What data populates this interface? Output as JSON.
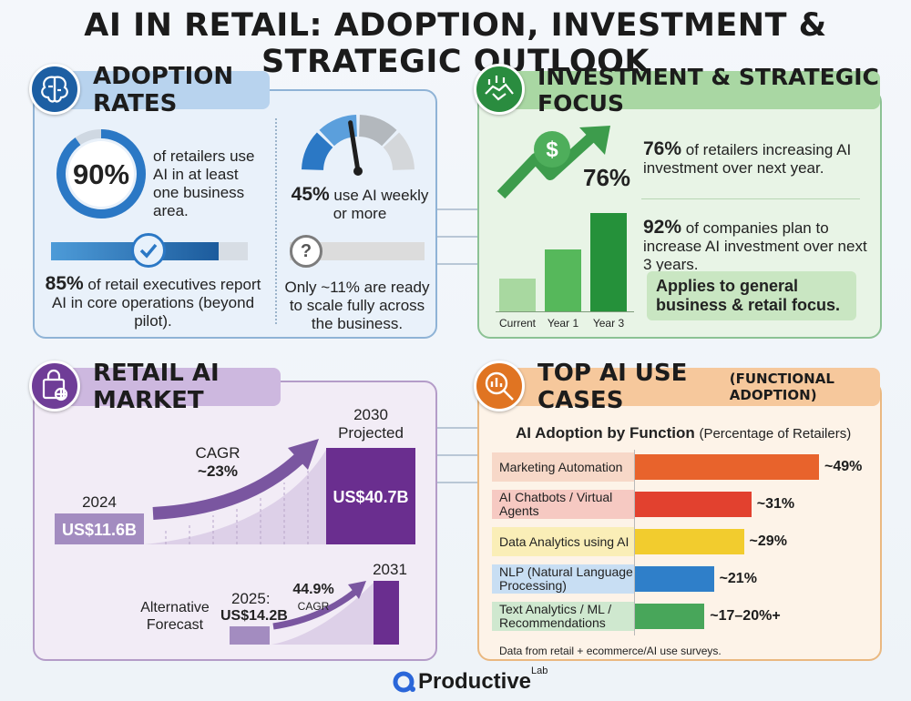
{
  "title": "AI IN RETAIL: ADOPTION, INVESTMENT & STRATEGIC OUTLOOK",
  "adoption": {
    "header": "ADOPTION RATES",
    "ring_value": "90%",
    "ring_fraction": 0.9,
    "ring_text": "of retailers use AI in at least one business area.",
    "gauge_fraction": 0.45,
    "weekly_value": "45%",
    "weekly_text": "use AI weekly or more",
    "core_fraction": 0.85,
    "core_value": "85%",
    "core_text": "of retail executives report AI in core operations (beyond pilot).",
    "scale_text": "Only ~11% are ready to scale fully across the business."
  },
  "investment": {
    "header": "INVESTMENT & STRATEGIC FOCUS",
    "arrow_value": "76%",
    "stat1_value": "76%",
    "stat1_text": "of retailers increasing AI investment over next year.",
    "stat2_value": "92%",
    "stat2_text": "of companies plan to increase AI investment over next 3 years.",
    "note": "Applies to general business & retail focus.",
    "bars": [
      {
        "label": "Current",
        "level": 0.33,
        "color": "#a8d8a0"
      },
      {
        "label": "Year 1",
        "level": 0.63,
        "color": "#56b85b"
      },
      {
        "label": "Year 3",
        "level": 1.0,
        "color": "#25913a"
      }
    ]
  },
  "market": {
    "header": "RETAIL AI MARKET",
    "year_2024": "2024",
    "value_2024": "US$11.6B",
    "cagr_label": "CAGR",
    "cagr_value": "~23%",
    "year_2030": "2030",
    "projected": "Projected",
    "value_2030": "US$40.7B",
    "alt_label": "Alternative Forecast",
    "year_2025": "2025:",
    "value_2025": "US$14.2B",
    "alt_cagr_value": "44.9%",
    "alt_cagr_label": "CAGR",
    "year_2031": "2031"
  },
  "usecases": {
    "header": "TOP AI USE CASES",
    "header_sub": "(FUNCTIONAL ADOPTION)",
    "chart_title": "AI Adoption by Function",
    "chart_subtitle": "(Percentage of Retailers)",
    "footnote": "Data from retail + ecommerce/AI use surveys.",
    "items": [
      {
        "label": "Marketing Automation",
        "value": 49,
        "display": "~49%",
        "color": "#e8632c",
        "bg": "#f7d8c8"
      },
      {
        "label": "AI Chatbots / Virtual Agents",
        "value": 31,
        "display": "~31%",
        "color": "#e2412f",
        "bg": "#f6c9c2"
      },
      {
        "label": "Data Analytics using AI",
        "value": 29,
        "display": "~29%",
        "color": "#f2cc2e",
        "bg": "#faeeb7"
      },
      {
        "label": "NLP (Natural Language Processing)",
        "value": 21,
        "display": "~21%",
        "color": "#2f7fc9",
        "bg": "#c8def3"
      },
      {
        "label": "Text Analytics / ML / Recommendations",
        "value": 18.5,
        "display": "~17–20%+",
        "color": "#48a65a",
        "bg": "#cfe8cf"
      }
    ]
  },
  "brand": {
    "name": "Productive",
    "suffix": "Lab"
  }
}
